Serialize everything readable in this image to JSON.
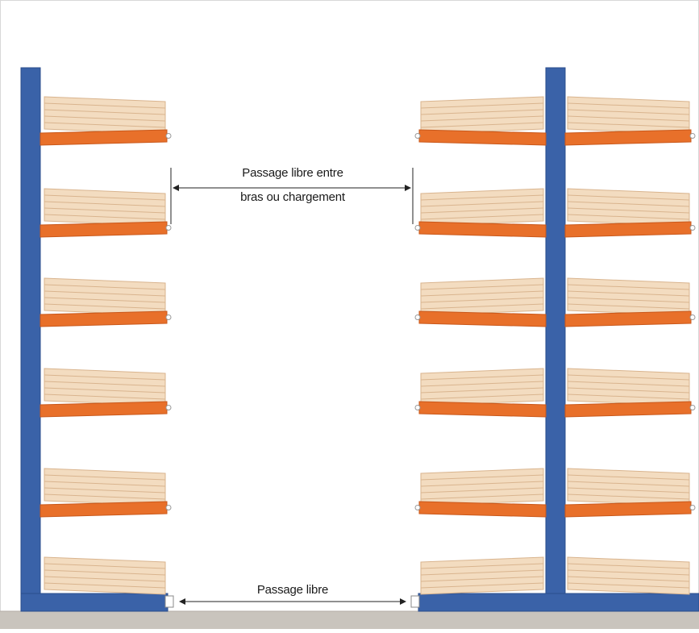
{
  "labels": {
    "passage_between_arms": "Passage libre entre",
    "passage_between_arms_line2": "bras ou chargement",
    "passage_floor": "Passage libre"
  },
  "colors": {
    "upright": "#3a62a8",
    "upright_shade": "#2b4d8c",
    "arm": "#e8702a",
    "arm_shade": "#c9581b",
    "load": "#f3dcc0",
    "load_line": "#d9b48e",
    "floor": "#c9c4bd",
    "frame": "#d8d8d8"
  }
}
